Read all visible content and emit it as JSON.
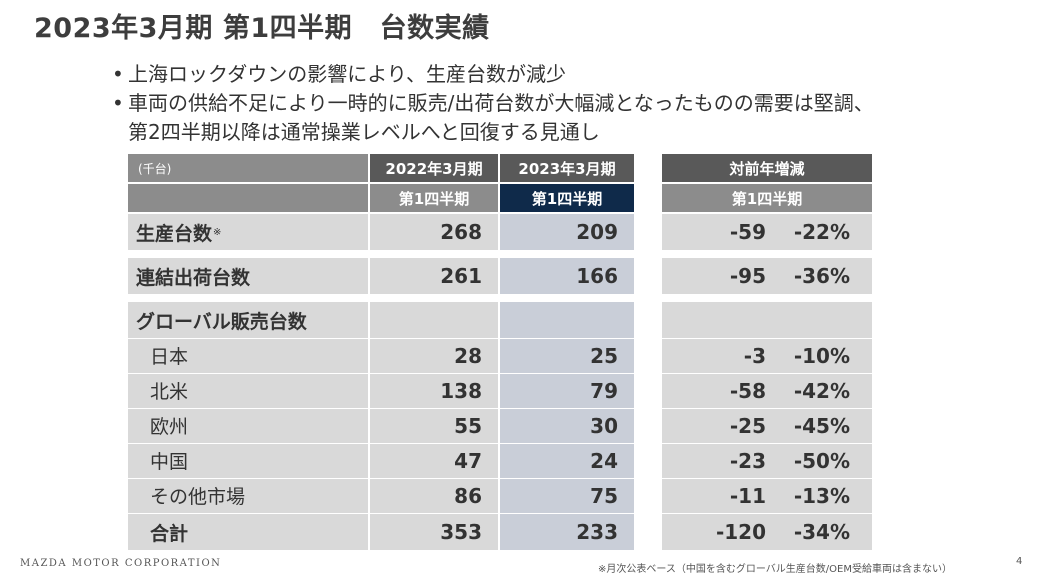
{
  "title": "2023年3月期 第1四半期　台数実績",
  "bullets": [
    "上海ロックダウンの影響により、生産台数が減少",
    "車両の供給不足により一時的に販売/出荷台数が大幅減となったものの需要は堅調、",
    "第2四半期以降は通常操業レベルへと回復する見通し"
  ],
  "table": {
    "unit": "(千台)",
    "col_2022": "2022年3月期",
    "col_2023": "2023年3月期",
    "col_yoy": "対前年増減",
    "q1": "第1四半期",
    "rows": {
      "production": {
        "label": "生産台数",
        "mark": "※",
        "v2022": "268",
        "v2023": "209",
        "diff": "-59",
        "pct": "-22%"
      },
      "shipment": {
        "label": "連結出荷台数",
        "v2022": "261",
        "v2023": "166",
        "diff": "-95",
        "pct": "-36%"
      },
      "global": {
        "label": "グローバル販売台数"
      },
      "japan": {
        "label": "日本",
        "v2022": "28",
        "v2023": "25",
        "diff": "-3",
        "pct": "-10%"
      },
      "na": {
        "label": "北米",
        "v2022": "138",
        "v2023": "79",
        "diff": "-58",
        "pct": "-42%"
      },
      "europe": {
        "label": "欧州",
        "v2022": "55",
        "v2023": "30",
        "diff": "-25",
        "pct": "-45%"
      },
      "china": {
        "label": "中国",
        "v2022": "47",
        "v2023": "24",
        "diff": "-23",
        "pct": "-50%"
      },
      "others": {
        "label": "その他市場",
        "v2022": "86",
        "v2023": "75",
        "diff": "-11",
        "pct": "-13%"
      },
      "total": {
        "label": "合計",
        "v2022": "353",
        "v2023": "233",
        "diff": "-120",
        "pct": "-34%"
      }
    }
  },
  "footer": {
    "company": "MAZDA MOTOR CORPORATION",
    "footnote": "※月次公表ベース（中国を含むグローバル生産台数/OEM受給車両は含まない）",
    "page": "4"
  }
}
